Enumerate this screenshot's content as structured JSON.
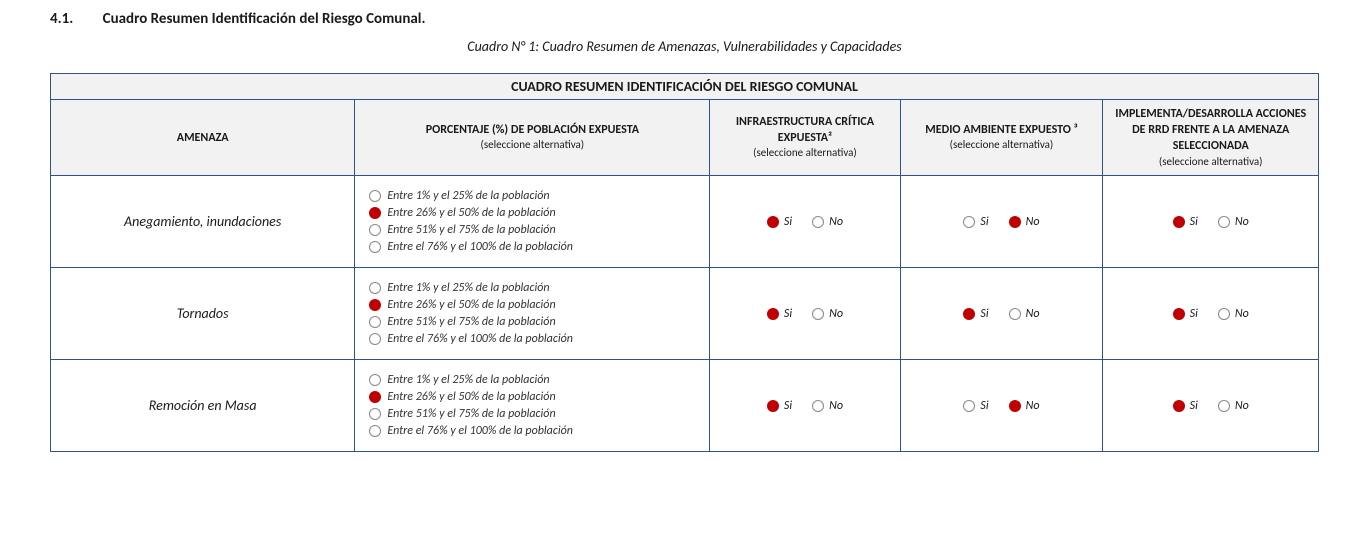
{
  "heading_number": "4.1.",
  "heading_text": "Cuadro Resumen Identificación del Riesgo Comunal.",
  "caption": "Cuadro N° 1: Cuadro Resumen de Amenazas, Vulnerabilidades y Capacidades",
  "table_title": "CUADRO RESUMEN IDENTIFICACIÓN DEL RIESGO COMUNAL",
  "headers": {
    "threat": "AMENAZA",
    "pct_main": "PORCENTAJE (%) DE POBLACIÓN EXPUESTA",
    "pct_sub": "(seleccione alternativa)",
    "infra_main": "INFRAESTRUCTURA CRÍTICA EXPUESTA²",
    "infra_sub": "(seleccione alternativa)",
    "env_main": "MEDIO AMBIENTE EXPUESTO ³",
    "env_sub": "(seleccione alternativa)",
    "rrd_main": "IMPLEMENTA/DESARROLLA ACCIONES DE RRD FRENTE A LA AMENAZA SELECCIONADA",
    "rrd_sub": "(seleccione alternativa)"
  },
  "pct_options": [
    "Entre 1% y el 25% de la población",
    "Entre 26% y el 50% de la población",
    "Entre 51% y el 75% de la población",
    "Entre el 76% y el 100% de la población"
  ],
  "si_label": "Si",
  "no_label": "No",
  "rows": [
    {
      "threat": "Anegamiento, inundaciones",
      "pct_selected": 1,
      "infra_si": true,
      "env_si": false,
      "rrd_si": true
    },
    {
      "threat": "Tornados",
      "pct_selected": 1,
      "infra_si": true,
      "env_si": true,
      "rrd_si": true
    },
    {
      "threat": "Remoción en Masa",
      "pct_selected": 1,
      "infra_si": true,
      "env_si": false,
      "rrd_si": true
    }
  ],
  "colors": {
    "border": "#2f528f",
    "header_bg": "#f2f2f2",
    "radio_selected": "#c00000",
    "radio_border": "#888888",
    "text": "#1a1a1a"
  }
}
